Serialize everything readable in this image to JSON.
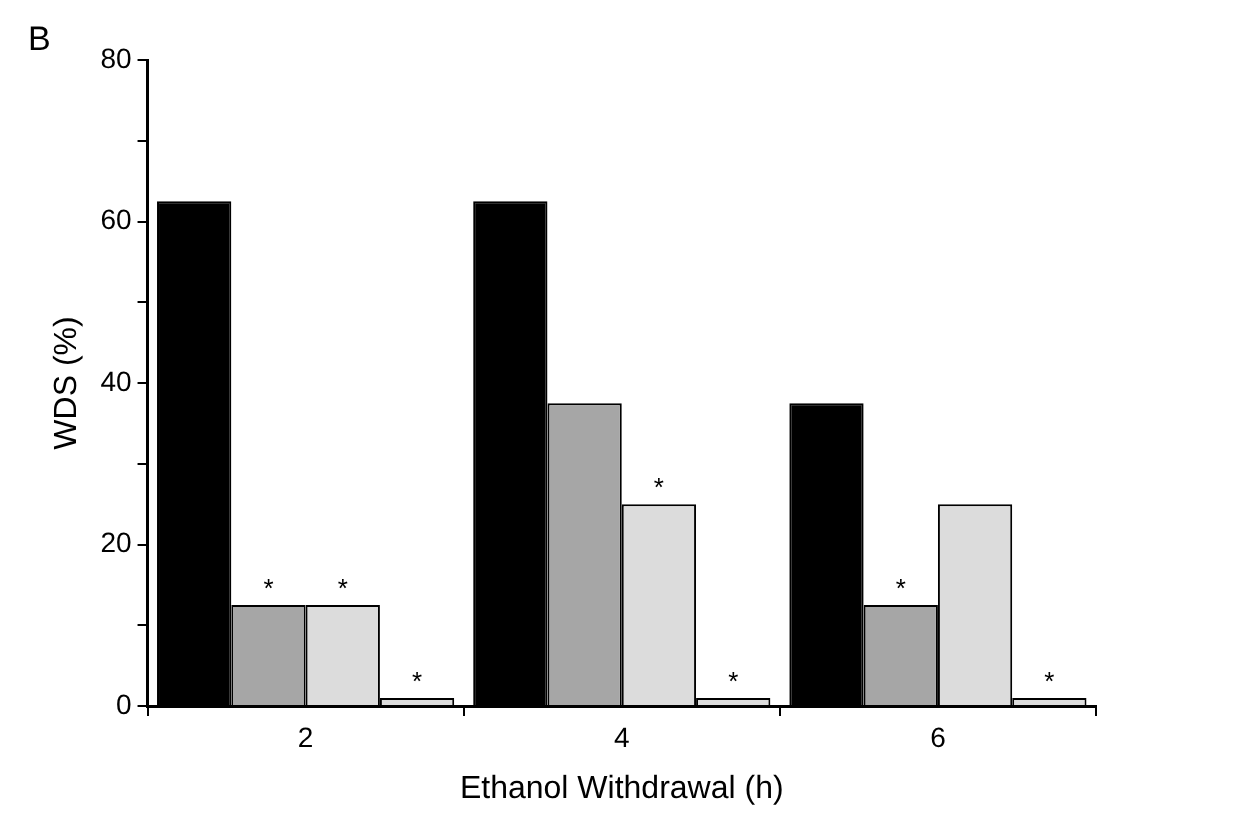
{
  "chart_data": {
    "type": "bar",
    "xlabel": "Ethanol Withdrawal (h)",
    "ylabel": "WDS (%)",
    "annotations": [
      "B"
    ],
    "categories": [
      "2",
      "4",
      "6"
    ],
    "series": [
      {
        "color": "#000000",
        "values": [
          62.5,
          62.5,
          37.5
        ]
      },
      {
        "color": "#a6a6a6",
        "values": [
          12.5,
          37.5,
          12.5
        ],
        "value_labels": [
          "*",
          null,
          "*"
        ]
      },
      {
        "color": "#dcdcdc",
        "values": [
          12.5,
          25,
          25
        ],
        "value_labels": [
          "*",
          "*",
          null
        ]
      },
      {
        "color": "#dcdcdc",
        "values": [
          1,
          1,
          1
        ],
        "value_labels": [
          "*",
          "*",
          "*"
        ]
      }
    ],
    "ylim": [
      0,
      80
    ],
    "yticks": [
      0,
      {
        "value": 10,
        "label": null
      },
      20,
      {
        "value": 30,
        "label": null
      },
      40,
      {
        "value": 50,
        "label": null
      },
      60,
      {
        "value": 70,
        "label": null
      },
      80
    ],
    "grid": false,
    "legend": false
  }
}
